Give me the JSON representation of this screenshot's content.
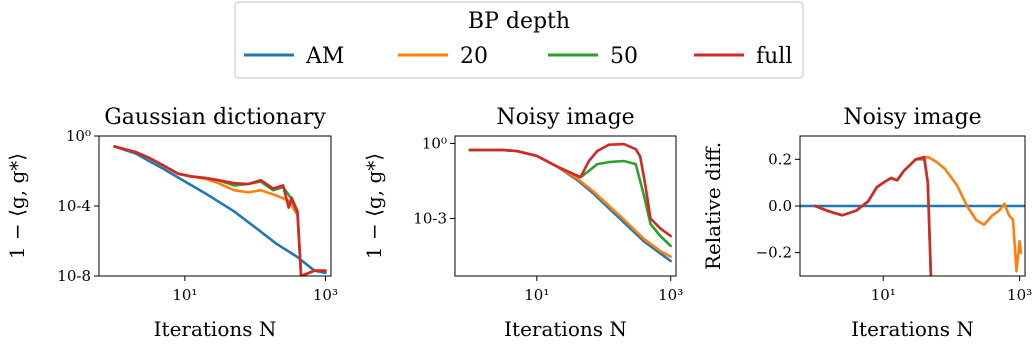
{
  "legend": {
    "title": "BP depth",
    "entries": [
      {
        "name": "AM",
        "color": "#1f77b4"
      },
      {
        "name": "20",
        "color": "#ff7f0e"
      },
      {
        "name": "50",
        "color": "#2ca02c"
      },
      {
        "name": "full",
        "color": "#d62728"
      }
    ]
  },
  "chart_data": [
    {
      "type": "line",
      "title": "Gaussian dictionary",
      "xlabel": "Iterations N",
      "ylabel": "1 − ⟨g, g*⟩",
      "xscale": "log",
      "yscale": "log",
      "xlim": [
        0.6,
        1200
      ],
      "ylim": [
        1e-08,
        1
      ],
      "xticks": [
        {
          "value": 10,
          "label": "10¹"
        },
        {
          "value": 1000,
          "label": "10³"
        }
      ],
      "yticks": [
        {
          "value": 1,
          "label": "10⁰"
        },
        {
          "value": 0.0001,
          "label": "10-4"
        },
        {
          "value": 1e-08,
          "label": "10-8"
        }
      ],
      "series": [
        {
          "name": "AM",
          "color": "#1f77b4",
          "points": [
            [
              1,
              0.25
            ],
            [
              2,
              0.1
            ],
            [
              3,
              0.04
            ],
            [
              5,
              0.013
            ],
            [
              10,
              0.0025
            ],
            [
              20,
              0.0005
            ],
            [
              50,
              5e-05
            ],
            [
              100,
              6e-06
            ],
            [
              200,
              7e-07
            ],
            [
              400,
              1.2e-07
            ],
            [
              700,
              2e-08
            ],
            [
              1000,
              1.5e-08
            ]
          ]
        },
        {
          "name": "20",
          "color": "#ff7f0e",
          "points": [
            [
              1,
              0.25
            ],
            [
              2,
              0.12
            ],
            [
              3,
              0.06
            ],
            [
              5,
              0.02
            ],
            [
              8,
              0.007
            ],
            [
              12,
              0.005
            ],
            [
              20,
              0.0035
            ],
            [
              30,
              0.002
            ],
            [
              50,
              0.0008
            ],
            [
              80,
              0.0006
            ],
            [
              120,
              0.0008
            ],
            [
              200,
              0.0004
            ],
            [
              300,
              0.0002
            ],
            [
              400,
              3e-05
            ],
            [
              450,
              1e-08
            ],
            [
              700,
              2e-08
            ],
            [
              1000,
              2e-08
            ]
          ]
        },
        {
          "name": "50",
          "color": "#2ca02c",
          "points": [
            [
              1,
              0.25
            ],
            [
              2,
              0.12
            ],
            [
              3,
              0.06
            ],
            [
              5,
              0.02
            ],
            [
              8,
              0.007
            ],
            [
              12,
              0.005
            ],
            [
              20,
              0.004
            ],
            [
              30,
              0.003
            ],
            [
              50,
              0.0015
            ],
            [
              80,
              0.0018
            ],
            [
              120,
              0.0025
            ],
            [
              180,
              0.0008
            ],
            [
              250,
              0.0012
            ],
            [
              320,
              0.0003
            ],
            [
              400,
              4e-05
            ],
            [
              450,
              1e-08
            ],
            [
              700,
              2e-08
            ],
            [
              1000,
              2e-08
            ]
          ]
        },
        {
          "name": "full",
          "color": "#d62728",
          "points": [
            [
              1,
              0.25
            ],
            [
              2,
              0.12
            ],
            [
              3,
              0.06
            ],
            [
              5,
              0.02
            ],
            [
              8,
              0.007
            ],
            [
              12,
              0.005
            ],
            [
              20,
              0.004
            ],
            [
              30,
              0.003
            ],
            [
              50,
              0.002
            ],
            [
              80,
              0.0018
            ],
            [
              120,
              0.003
            ],
            [
              180,
              0.001
            ],
            [
              250,
              0.0015
            ],
            [
              300,
              8e-05
            ],
            [
              330,
              0.0003
            ],
            [
              400,
              5e-05
            ],
            [
              450,
              1e-08
            ],
            [
              700,
              2e-08
            ],
            [
              1000,
              2e-08
            ]
          ]
        }
      ]
    },
    {
      "type": "line",
      "title": "Noisy image",
      "xlabel": "Iterations N",
      "ylabel": "1 − ⟨g, g*⟩",
      "xscale": "log",
      "yscale": "log",
      "xlim": [
        0.6,
        1200
      ],
      "ylim": [
        5e-06,
        2
      ],
      "xticks": [
        {
          "value": 10,
          "label": "10¹"
        },
        {
          "value": 1000,
          "label": "10³"
        }
      ],
      "yticks": [
        {
          "value": 1,
          "label": "10⁰"
        },
        {
          "value": 0.001,
          "label": "10-3"
        }
      ],
      "series": [
        {
          "name": "AM",
          "color": "#1f77b4",
          "points": [
            [
              1,
              0.55
            ],
            [
              3,
              0.55
            ],
            [
              5,
              0.5
            ],
            [
              10,
              0.32
            ],
            [
              20,
              0.12
            ],
            [
              40,
              0.035
            ],
            [
              70,
              0.01
            ],
            [
              100,
              0.004
            ],
            [
              200,
              0.0007
            ],
            [
              400,
              0.00012
            ],
            [
              700,
              4e-05
            ],
            [
              1000,
              2e-05
            ]
          ]
        },
        {
          "name": "20",
          "color": "#ff7f0e",
          "points": [
            [
              1,
              0.55
            ],
            [
              3,
              0.55
            ],
            [
              5,
              0.5
            ],
            [
              10,
              0.32
            ],
            [
              20,
              0.12
            ],
            [
              40,
              0.04
            ],
            [
              70,
              0.012
            ],
            [
              100,
              0.005
            ],
            [
              200,
              0.0009
            ],
            [
              400,
              0.00015
            ],
            [
              700,
              5e-05
            ],
            [
              1000,
              3e-05
            ]
          ]
        },
        {
          "name": "50",
          "color": "#2ca02c",
          "points": [
            [
              1,
              0.55
            ],
            [
              3,
              0.55
            ],
            [
              5,
              0.5
            ],
            [
              10,
              0.32
            ],
            [
              20,
              0.12
            ],
            [
              45,
              0.045
            ],
            [
              60,
              0.08
            ],
            [
              80,
              0.15
            ],
            [
              120,
              0.18
            ],
            [
              200,
              0.2
            ],
            [
              300,
              0.15
            ],
            [
              400,
              0.008
            ],
            [
              500,
              0.0006
            ],
            [
              700,
              0.0002
            ],
            [
              1000,
              8e-05
            ]
          ]
        },
        {
          "name": "full",
          "color": "#d62728",
          "points": [
            [
              1,
              0.55
            ],
            [
              3,
              0.55
            ],
            [
              5,
              0.5
            ],
            [
              10,
              0.32
            ],
            [
              20,
              0.12
            ],
            [
              45,
              0.045
            ],
            [
              60,
              0.2
            ],
            [
              80,
              0.5
            ],
            [
              120,
              0.9
            ],
            [
              200,
              0.95
            ],
            [
              300,
              0.6
            ],
            [
              350,
              0.3
            ],
            [
              420,
              0.02
            ],
            [
              500,
              0.001
            ],
            [
              700,
              0.0004
            ],
            [
              1000,
              0.0002
            ]
          ]
        }
      ]
    },
    {
      "type": "line",
      "title": "Noisy image",
      "xlabel": "Iterations N",
      "ylabel": "Relative diff.",
      "xscale": "log",
      "yscale": "linear",
      "xlim": [
        0.6,
        1200
      ],
      "ylim": [
        -0.3,
        0.3
      ],
      "xticks": [
        {
          "value": 10,
          "label": "10¹"
        },
        {
          "value": 1000,
          "label": "10³"
        }
      ],
      "yticks": [
        {
          "value": 0.2,
          "label": "0.2"
        },
        {
          "value": 0,
          "label": "0.0"
        },
        {
          "value": -0.2,
          "label": "−0.2"
        }
      ],
      "series": [
        {
          "name": "AM",
          "color": "#1f77b4",
          "points": [
            [
              0.6,
              0
            ],
            [
              1200,
              0
            ]
          ]
        },
        {
          "name": "20",
          "color": "#ff7f0e",
          "points": [
            [
              1,
              0
            ],
            [
              1.5,
              -0.02
            ],
            [
              2.5,
              -0.04
            ],
            [
              4,
              -0.02
            ],
            [
              6,
              0.02
            ],
            [
              8,
              0.08
            ],
            [
              10,
              0.1
            ],
            [
              13,
              0.12
            ],
            [
              16,
              0.11
            ],
            [
              20,
              0.15
            ],
            [
              30,
              0.2
            ],
            [
              45,
              0.21
            ],
            [
              60,
              0.19
            ],
            [
              80,
              0.16
            ],
            [
              120,
              0.09
            ],
            [
              170,
              0
            ],
            [
              230,
              -0.06
            ],
            [
              300,
              -0.08
            ],
            [
              400,
              -0.04
            ],
            [
              500,
              -0.02
            ],
            [
              600,
              0.01
            ],
            [
              700,
              -0.04
            ],
            [
              800,
              -0.06
            ],
            [
              900,
              -0.28
            ],
            [
              1000,
              -0.15
            ],
            [
              1050,
              -0.2
            ]
          ]
        },
        {
          "name": "50",
          "color": "#2ca02c",
          "points": [
            [
              1,
              0
            ],
            [
              1.5,
              -0.02
            ],
            [
              2.5,
              -0.04
            ],
            [
              4,
              -0.02
            ],
            [
              6,
              0.02
            ],
            [
              8,
              0.08
            ],
            [
              10,
              0.1
            ],
            [
              13,
              0.12
            ],
            [
              16,
              0.11
            ],
            [
              20,
              0.15
            ],
            [
              30,
              0.2
            ],
            [
              40,
              0.2
            ],
            [
              45,
              0.1
            ],
            [
              50,
              -0.3
            ]
          ]
        },
        {
          "name": "full",
          "color": "#d62728",
          "points": [
            [
              1,
              0
            ],
            [
              1.5,
              -0.02
            ],
            [
              2.5,
              -0.04
            ],
            [
              4,
              -0.02
            ],
            [
              6,
              0.02
            ],
            [
              8,
              0.08
            ],
            [
              10,
              0.1
            ],
            [
              13,
              0.12
            ],
            [
              16,
              0.11
            ],
            [
              20,
              0.15
            ],
            [
              30,
              0.2
            ],
            [
              40,
              0.21
            ],
            [
              45,
              0.1
            ],
            [
              50,
              -0.3
            ]
          ]
        }
      ]
    }
  ]
}
